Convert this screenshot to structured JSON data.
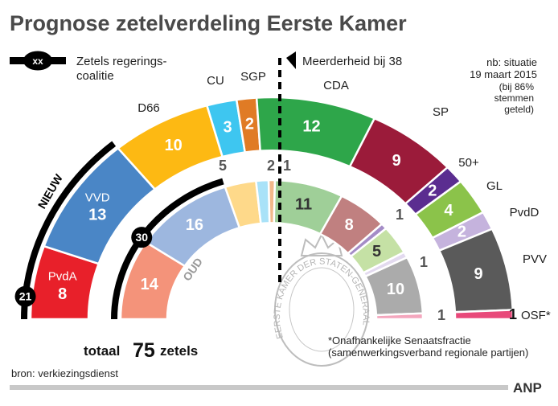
{
  "title": "Prognose zetelverdeling Eerste Kamer",
  "legend": {
    "badge": "xx",
    "line1": "Zetels regerings-",
    "line2": "coalitie"
  },
  "majority_label": "Meerderheid bij 38",
  "note": [
    "nb: situatie",
    "19 maart 2015",
    "(bij 86%",
    "stemmen",
    "geteld)"
  ],
  "ring_labels": {
    "new": "NIEUW",
    "old": "OUD"
  },
  "coalition": {
    "new_total": "21",
    "old_total": "30"
  },
  "total": {
    "prefix": "totaal",
    "number": "75",
    "suffix": "zetels"
  },
  "footnote": [
    "*Onafhankelijke Senaatsfractie",
    "(samenwerkingsverband regionale partijen)"
  ],
  "source": "bron: verkiezingsdienst",
  "logo": "ANP",
  "seal_text": "EERSTE KAMER DER STATEN-GENERAAL",
  "chart_data": {
    "type": "pie",
    "subtype": "semicircle parliament (two rings)",
    "total_seats": 75,
    "majority": 38,
    "parties": [
      {
        "name": "PvdA",
        "new": 8,
        "old": 14,
        "color": "#e8202a",
        "light": "#f4937a",
        "coalition": true
      },
      {
        "name": "VVD",
        "new": 13,
        "old": 16,
        "color": "#4a86c6",
        "light": "#9db7df",
        "coalition": true
      },
      {
        "name": "D66",
        "new": 10,
        "old": 5,
        "color": "#fdb913",
        "light": "#fed98a",
        "coalition": false
      },
      {
        "name": "CU",
        "new": 3,
        "old": 2,
        "color": "#3ec6f0",
        "light": "#a9e2f8",
        "coalition": false
      },
      {
        "name": "SGP",
        "new": 2,
        "old": 1,
        "color": "#e07b25",
        "light": "#f2b88a",
        "coalition": false
      },
      {
        "name": "CDA",
        "new": 12,
        "old": 11,
        "color": "#2ea64a",
        "light": "#9fcf98",
        "coalition": false
      },
      {
        "name": "SP",
        "new": 9,
        "old": 8,
        "color": "#9b1b3a",
        "light": "#c08080",
        "coalition": false
      },
      {
        "name": "50+",
        "new": 2,
        "old": 1,
        "color": "#5b2d90",
        "light": "#a48cc7",
        "coalition": false
      },
      {
        "name": "GL",
        "new": 4,
        "old": 5,
        "color": "#8bc34a",
        "light": "#c5e1a5",
        "coalition": false
      },
      {
        "name": "PvdD",
        "new": 2,
        "old": 1,
        "color": "#c5b3dd",
        "light": "#e3daef",
        "coalition": false
      },
      {
        "name": "PVV",
        "new": 9,
        "old": 10,
        "color": "#5a5a5a",
        "light": "#ababab",
        "coalition": false
      },
      {
        "name": "OSF*",
        "new": 1,
        "old": 1,
        "color": "#e8497a",
        "light": "#f4a6bd",
        "coalition": false
      }
    ]
  }
}
